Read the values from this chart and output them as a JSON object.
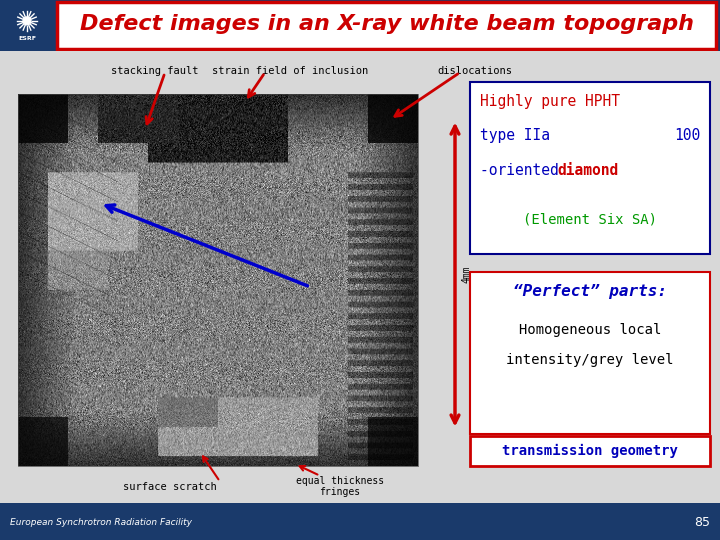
{
  "title": "Defect images in an X-ray white beam topograph",
  "title_color": "#CC0000",
  "header_bg": "#1a3a6b",
  "footer_bg": "#1a3a6b",
  "footer_text": "European Synchrotron Radiation Facility",
  "footer_page": "85",
  "main_bg": "#d8d8d8",
  "labels": {
    "stacking_fault": "stacking fault",
    "strain_field": "strain field of inclusion",
    "dislocations": "dislocations",
    "surface_scratch": "surface scratch",
    "equal_thickness": "equal thickness\nfringes",
    "transmission": "transmission geometry",
    "4mm": "4mm"
  },
  "box1_line1": "Highly pure HPHT",
  "box1_line2_blue": "type IIa",
  "box1_line2_red": "100",
  "box1_line3_blue": "-oriented ",
  "box1_line3_red": "diamond",
  "box1_line4": "(Element Six SA)",
  "box2_line1": "“Perfect” parts:",
  "box2_line2a": "Homogeneous local",
  "box2_line2b": "intensity/grey level",
  "colors": {
    "red": "#CC0000",
    "blue": "#0000BB",
    "green": "#009900",
    "white": "#FFFFFF",
    "black": "#000000",
    "box_border": "#000088",
    "light_bg": "#e8e8e8"
  }
}
